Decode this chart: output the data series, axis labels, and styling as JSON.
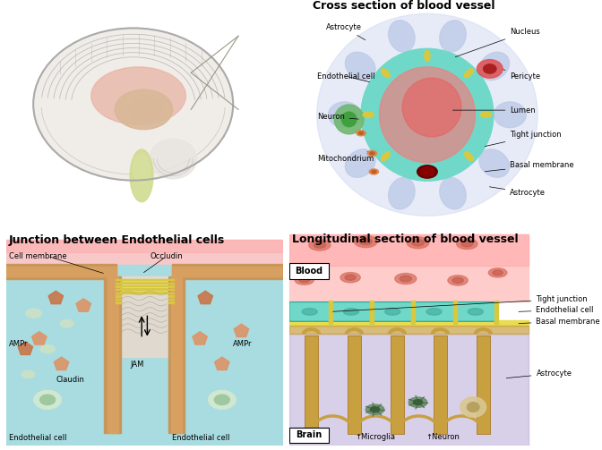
{
  "title_fontsize": 9,
  "label_fontsize": 6,
  "colors": {
    "blood_red": "#f08080",
    "blood_light": "#ffcccc",
    "blood_top": "#ffaaaa",
    "vessel_green": "#70d8c8",
    "vessel_dark": "#20b2aa",
    "vessel_border": "#30a898",
    "astrocyte_blue": "#c0cce8",
    "astrocyte_blue2": "#d0d8f0",
    "brain_purple": "#b8a8d8",
    "brain_purple2": "#c8b8e8",
    "endothelial_tan": "#c8965a",
    "endothelial_tan2": "#d8a060",
    "tight_junction_y": "#d8c840",
    "nucleus_red": "#cc3333",
    "pericyte_color": "#e05050",
    "basal_membrane": "#e8dc50",
    "pink_bg": "#f8c8c8",
    "pink_bg2": "#ffd8d8",
    "cyan_bg": "#a8dce0",
    "white": "#ffffff",
    "gray": "#999988",
    "black": "#000000",
    "brain_outline": "#aaaaaa",
    "brain_fill": "#f0ede8",
    "brain_cortex": "#e8e4e0",
    "brain_pink": "#e8b0a0",
    "brain_tan": "#d8b898",
    "brain_yellow_green": "#d8e0a0",
    "brain_stem_green": "#d0dc90",
    "divider_line": "#dddddd",
    "junction_pink": "#f0c8b8",
    "rbc_color": "#d87060",
    "rbc_inner": "#c05848",
    "astro_foot": "#c8a040"
  },
  "sections": {
    "cross_section": {
      "title": "Cross section of blood vessel"
    },
    "junction": {
      "title": "Junction between Endothelial cells"
    },
    "longitudinal": {
      "title": "Longitudinal section of blood vessel"
    }
  }
}
